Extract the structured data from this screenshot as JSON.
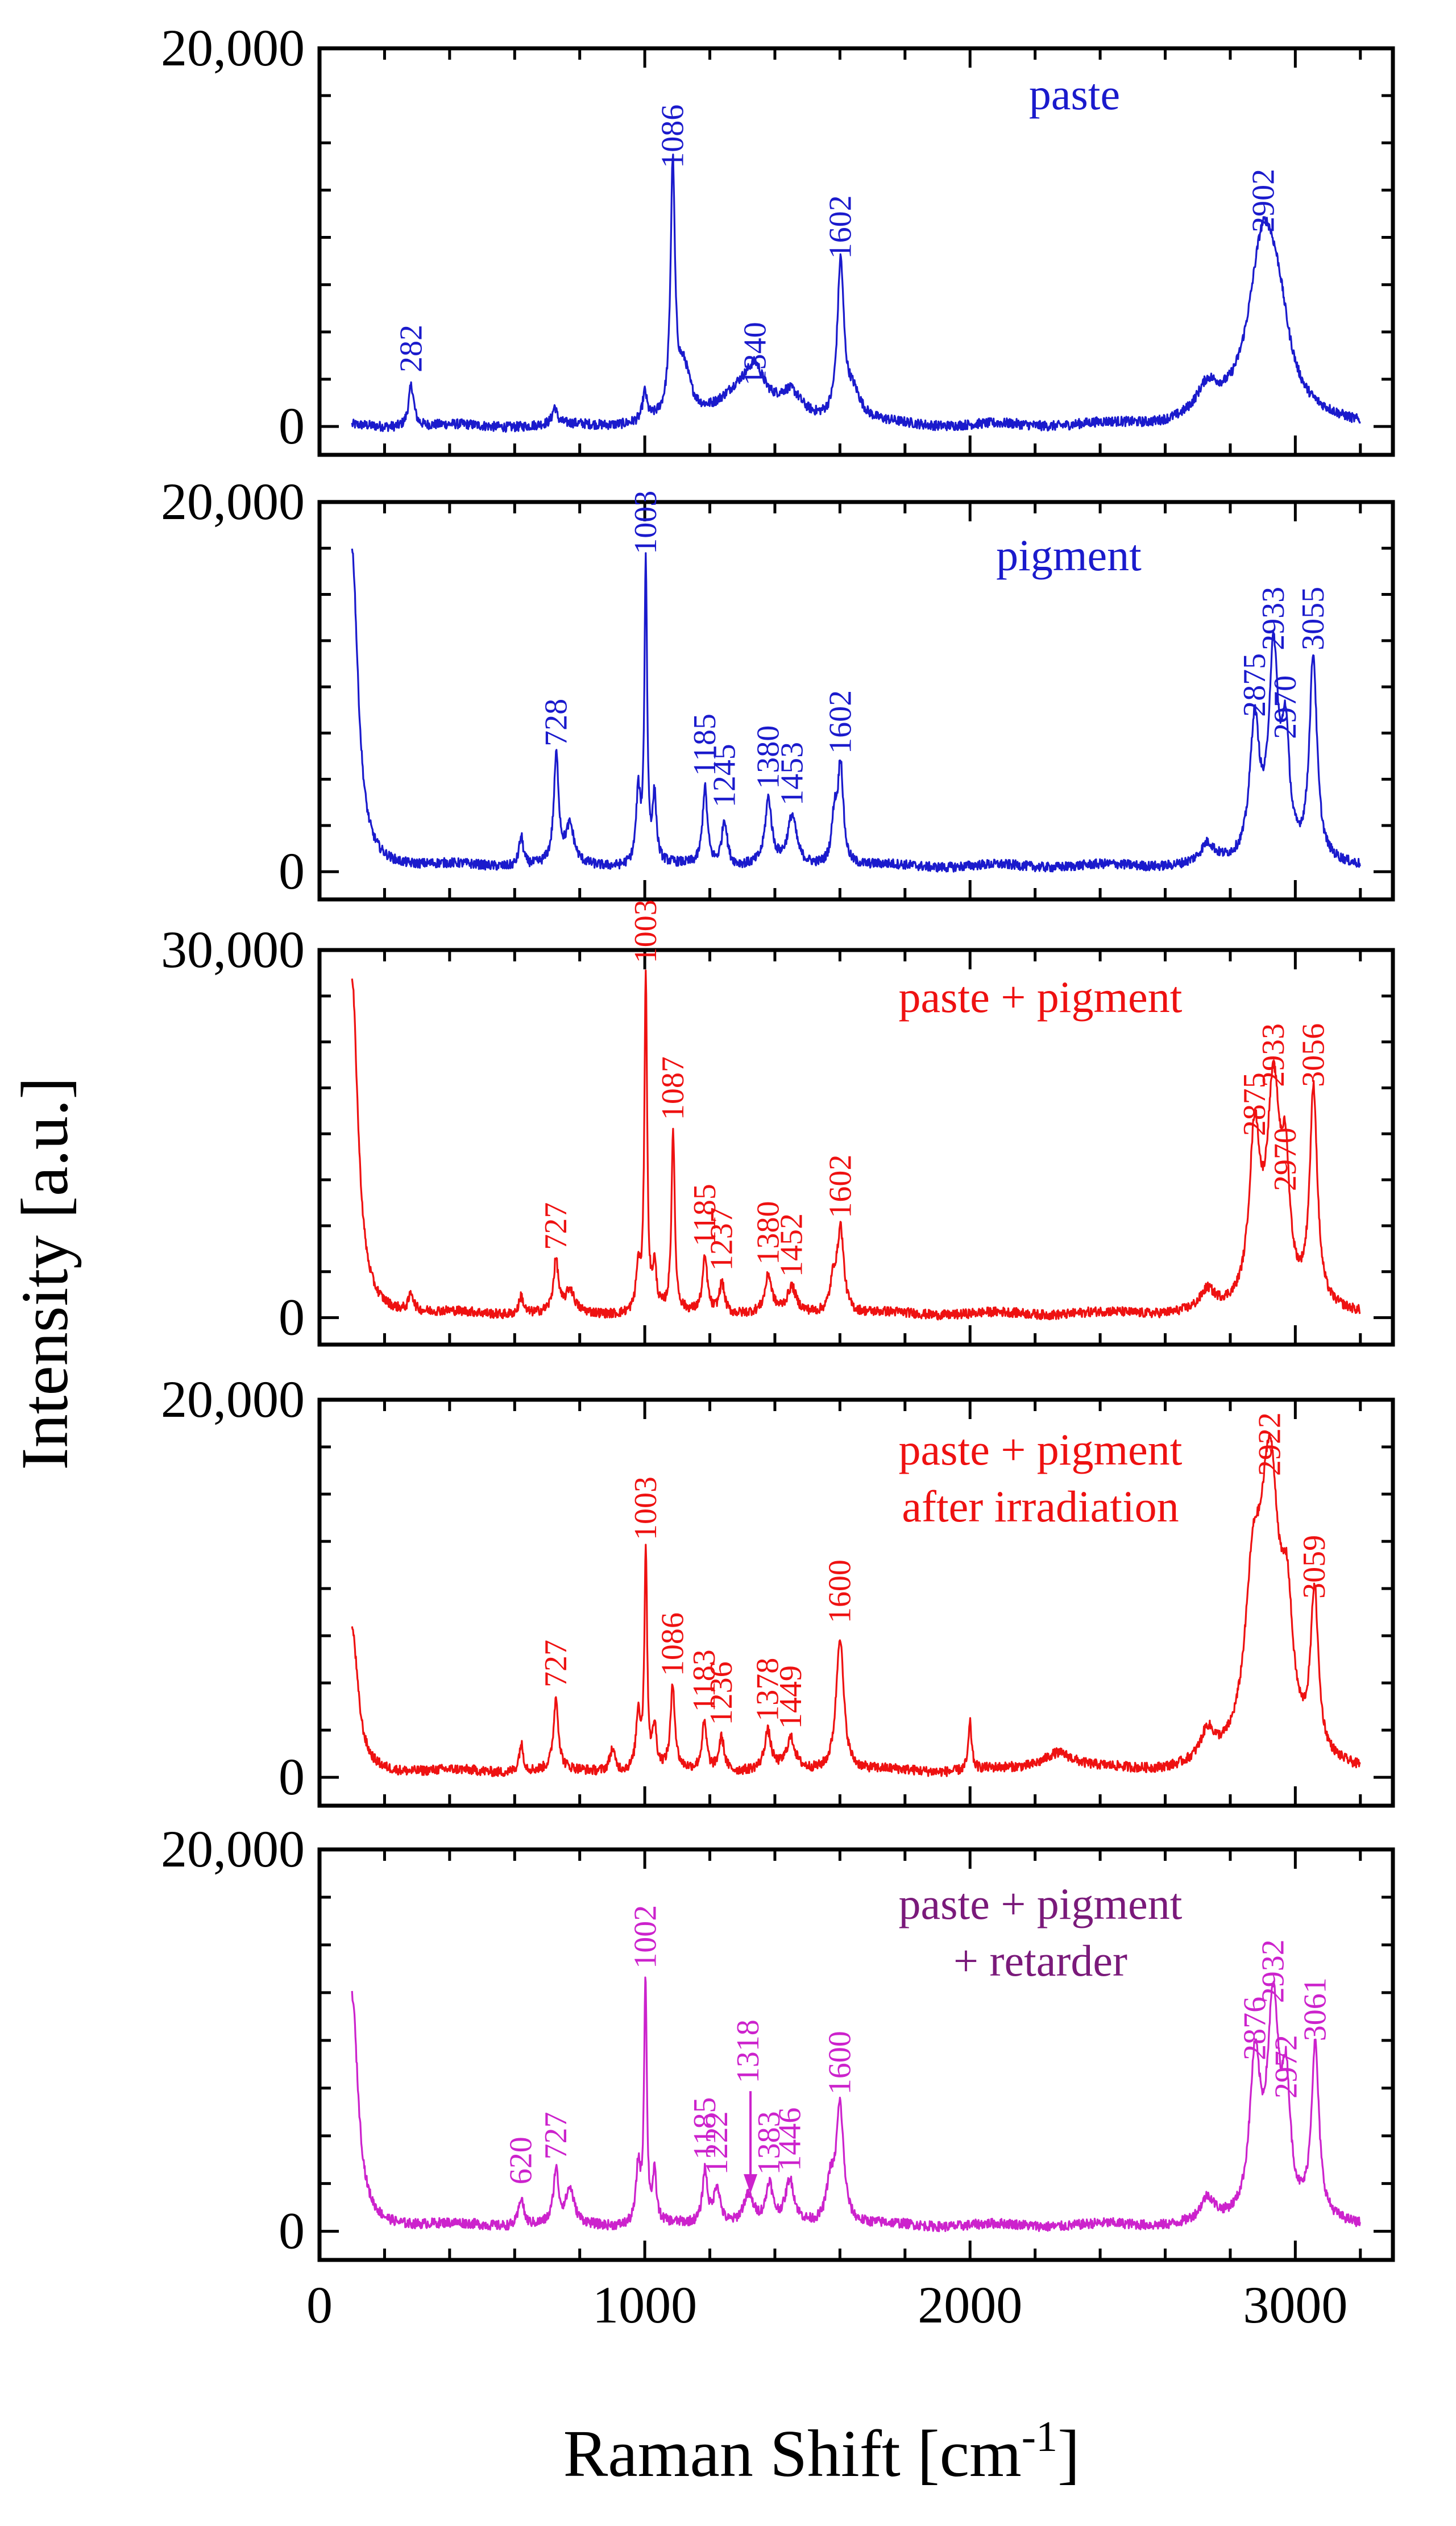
{
  "chart_data": {
    "type": "line",
    "xlabel": "Raman Shift [cm",
    "xlabel_sup": "-1",
    "xlabel_end": "]",
    "ylabel": "Intensity [a.u.]",
    "xlim": [
      0,
      3300
    ],
    "x_ticks": [
      0,
      1000,
      2000,
      3000
    ],
    "x_tick_labels": [
      "0",
      "1000",
      "2000",
      "3000"
    ],
    "series_range": [
      100,
      3200
    ],
    "grid": false,
    "panels": [
      {
        "name": "paste",
        "title_lines": [
          "paste"
        ],
        "color": "#1a1acc",
        "title_color": "#1a1acc",
        "ylim": [
          -1500,
          20000
        ],
        "y_ticks": [
          0,
          20000
        ],
        "y_tick_labels": [
          "0",
          "20,000"
        ],
        "baseline": 0,
        "edge_peaks": [],
        "peaks": [
          {
            "x": 282,
            "y": 2200,
            "w": 10,
            "label": "282"
          },
          {
            "x": 723,
            "y": 900,
            "w": 8
          },
          {
            "x": 1000,
            "y": 1500,
            "w": 8
          },
          {
            "x": 1086,
            "y": 13000,
            "w": 8,
            "label": "1086"
          },
          {
            "x": 1120,
            "y": 2500,
            "w": 25
          },
          {
            "x": 1300,
            "y": 2000,
            "w": 90
          },
          {
            "x": 1340,
            "y": 1500,
            "w": 30,
            "label": "1340"
          },
          {
            "x": 1450,
            "y": 1200,
            "w": 40
          },
          {
            "x": 1602,
            "y": 8200,
            "w": 12,
            "label": "1602"
          },
          {
            "x": 1640,
            "y": 1500,
            "w": 30
          },
          {
            "x": 2730,
            "y": 1500,
            "w": 40
          },
          {
            "x": 2902,
            "y": 9600,
            "w": 55,
            "label": "2902"
          },
          {
            "x": 2950,
            "y": 3000,
            "w": 40
          }
        ]
      },
      {
        "name": "pigment",
        "title_lines": [
          "pigment"
        ],
        "color": "#1a1acc",
        "title_color": "#1a1acc",
        "ylim": [
          -1500,
          20000
        ],
        "y_ticks": [
          0,
          20000
        ],
        "y_tick_labels": [
          "0",
          "20,000"
        ],
        "baseline": 300,
        "edge_peaks": [
          {
            "x": 100,
            "y": 17000,
            "w": 22
          }
        ],
        "peaks": [
          {
            "x": 620,
            "y": 1600,
            "w": 8
          },
          {
            "x": 728,
            "y": 5800,
            "w": 9,
            "label": "728"
          },
          {
            "x": 770,
            "y": 2000,
            "w": 15
          },
          {
            "x": 980,
            "y": 3800,
            "w": 8
          },
          {
            "x": 1003,
            "y": 16200,
            "w": 5,
            "label": "1003"
          },
          {
            "x": 1030,
            "y": 3500,
            "w": 7
          },
          {
            "x": 1185,
            "y": 4200,
            "w": 9,
            "label": "1185"
          },
          {
            "x": 1245,
            "y": 2500,
            "w": 10,
            "label": "1245"
          },
          {
            "x": 1380,
            "y": 3500,
            "w": 12,
            "label": "1380"
          },
          {
            "x": 1453,
            "y": 2600,
            "w": 16,
            "label": "1453"
          },
          {
            "x": 1583,
            "y": 2500,
            "w": 10
          },
          {
            "x": 1602,
            "y": 5400,
            "w": 10,
            "label": "1602"
          },
          {
            "x": 2730,
            "y": 1000,
            "w": 25
          },
          {
            "x": 2875,
            "y": 7400,
            "w": 18,
            "label": "2875"
          },
          {
            "x": 2933,
            "y": 11000,
            "w": 18,
            "label": "2933"
          },
          {
            "x": 2970,
            "y": 6200,
            "w": 14,
            "label": "2970"
          },
          {
            "x": 3055,
            "y": 11000,
            "w": 14,
            "label": "3055"
          }
        ]
      },
      {
        "name": "paste + pigment",
        "title_lines": [
          "paste + pigment"
        ],
        "color": "#ee1111",
        "title_color": "#ee1111",
        "ylim": [
          -2200,
          30000
        ],
        "y_ticks": [
          0,
          30000
        ],
        "y_tick_labels": [
          "0",
          "30,000"
        ],
        "baseline": 300,
        "edge_peaks": [
          {
            "x": 100,
            "y": 27000,
            "w": 22
          }
        ],
        "peaks": [
          {
            "x": 282,
            "y": 1500,
            "w": 9
          },
          {
            "x": 620,
            "y": 1500,
            "w": 8
          },
          {
            "x": 727,
            "y": 4200,
            "w": 9,
            "label": "727"
          },
          {
            "x": 770,
            "y": 1800,
            "w": 15
          },
          {
            "x": 980,
            "y": 3500,
            "w": 8
          },
          {
            "x": 1003,
            "y": 27600,
            "w": 5,
            "label": "1003"
          },
          {
            "x": 1030,
            "y": 3500,
            "w": 7
          },
          {
            "x": 1087,
            "y": 14800,
            "w": 6,
            "label": "1087"
          },
          {
            "x": 1185,
            "y": 4500,
            "w": 9,
            "label": "1185"
          },
          {
            "x": 1237,
            "y": 2500,
            "w": 10,
            "label": "1237"
          },
          {
            "x": 1380,
            "y": 3000,
            "w": 12,
            "label": "1380"
          },
          {
            "x": 1452,
            "y": 2000,
            "w": 16,
            "label": "1452"
          },
          {
            "x": 1602,
            "y": 6800,
            "w": 12,
            "label": "1602"
          },
          {
            "x": 1580,
            "y": 2500,
            "w": 12
          },
          {
            "x": 2730,
            "y": 1500,
            "w": 25
          },
          {
            "x": 2875,
            "y": 13500,
            "w": 20,
            "label": "2875"
          },
          {
            "x": 2933,
            "y": 17500,
            "w": 25,
            "label": "2933"
          },
          {
            "x": 2970,
            "y": 9000,
            "w": 15,
            "label": "2970"
          },
          {
            "x": 3056,
            "y": 17500,
            "w": 14,
            "label": "3056"
          }
        ]
      },
      {
        "name": "paste + pigment after irradiation",
        "title_lines": [
          "paste + pigment",
          "after irradiation"
        ],
        "color": "#ee1111",
        "title_color": "#ee1111",
        "ylim": [
          -1500,
          20000
        ],
        "y_ticks": [
          0,
          20000
        ],
        "y_tick_labels": [
          "0",
          "20,000"
        ],
        "baseline": 300,
        "edge_peaks": [
          {
            "x": 100,
            "y": 7500,
            "w": 22
          }
        ],
        "peaks": [
          {
            "x": 620,
            "y": 1500,
            "w": 8
          },
          {
            "x": 727,
            "y": 3800,
            "w": 9,
            "label": "727"
          },
          {
            "x": 900,
            "y": 1200,
            "w": 10
          },
          {
            "x": 980,
            "y": 3000,
            "w": 8
          },
          {
            "x": 1003,
            "y": 11600,
            "w": 5,
            "label": "1003"
          },
          {
            "x": 1030,
            "y": 2200,
            "w": 7
          },
          {
            "x": 1086,
            "y": 4400,
            "w": 8,
            "label": "1086"
          },
          {
            "x": 1183,
            "y": 2500,
            "w": 9,
            "label": "1183"
          },
          {
            "x": 1236,
            "y": 1800,
            "w": 10,
            "label": "1236"
          },
          {
            "x": 1378,
            "y": 2000,
            "w": 12,
            "label": "1378"
          },
          {
            "x": 1449,
            "y": 1600,
            "w": 16,
            "label": "1449"
          },
          {
            "x": 1600,
            "y": 7200,
            "w": 14,
            "label": "1600"
          },
          {
            "x": 2000,
            "y": 2500,
            "w": 6
          },
          {
            "x": 2270,
            "y": 1000,
            "w": 60
          },
          {
            "x": 2730,
            "y": 1500,
            "w": 25
          },
          {
            "x": 2870,
            "y": 8000,
            "w": 30
          },
          {
            "x": 2922,
            "y": 15000,
            "w": 35,
            "label": "2922"
          },
          {
            "x": 2975,
            "y": 6000,
            "w": 20
          },
          {
            "x": 3059,
            "y": 8500,
            "w": 14,
            "label": "3059"
          }
        ]
      },
      {
        "name": "paste + pigment + retarder",
        "title_lines": [
          "paste + pigment",
          "+ retarder"
        ],
        "color": "#cc22cc",
        "title_color": "#7a1a7a",
        "ylim": [
          -1500,
          20000
        ],
        "y_ticks": [
          0,
          20000
        ],
        "y_tick_labels": [
          "0",
          "20,000"
        ],
        "baseline": 300,
        "edge_peaks": [
          {
            "x": 100,
            "y": 12000,
            "w": 22
          }
        ],
        "peaks": [
          {
            "x": 620,
            "y": 1500,
            "w": 9,
            "label": "620"
          },
          {
            "x": 727,
            "y": 2800,
            "w": 9,
            "label": "727"
          },
          {
            "x": 770,
            "y": 1800,
            "w": 15
          },
          {
            "x": 980,
            "y": 3000,
            "w": 8
          },
          {
            "x": 1002,
            "y": 12800,
            "w": 5,
            "label": "1002"
          },
          {
            "x": 1030,
            "y": 2500,
            "w": 7
          },
          {
            "x": 1185,
            "y": 2800,
            "w": 9,
            "label": "1185"
          },
          {
            "x": 1222,
            "y": 2000,
            "w": 12,
            "label": "1222"
          },
          {
            "x": 1318,
            "y": 1500,
            "w": 20,
            "label": "1318",
            "arrow": true
          },
          {
            "x": 1383,
            "y": 2000,
            "w": 12,
            "label": "1383"
          },
          {
            "x": 1446,
            "y": 2200,
            "w": 16,
            "label": "1446"
          },
          {
            "x": 1600,
            "y": 6200,
            "w": 14,
            "label": "1600"
          },
          {
            "x": 1570,
            "y": 2000,
            "w": 14
          },
          {
            "x": 2730,
            "y": 1200,
            "w": 25
          },
          {
            "x": 2876,
            "y": 8000,
            "w": 20,
            "label": "2876"
          },
          {
            "x": 2932,
            "y": 11000,
            "w": 22,
            "label": "2932"
          },
          {
            "x": 2972,
            "y": 6000,
            "w": 15,
            "label": "2972"
          },
          {
            "x": 3061,
            "y": 9000,
            "w": 14,
            "label": "3061"
          }
        ]
      }
    ]
  }
}
